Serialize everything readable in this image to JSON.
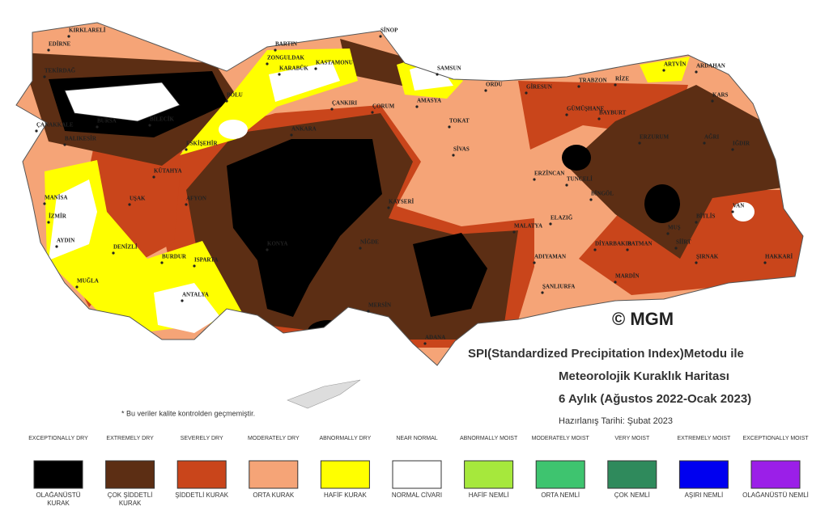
{
  "copyright": "© MGM",
  "title": {
    "line1": "SPI(Standardized Precipitation Index)Metodu ile",
    "line2": "Meteorolojik Kuraklık Haritası",
    "line3": "6 Aylık (Ağustos 2022-Ocak 2023)",
    "date": "Hazırlanış Tarihi: Şubat 2023"
  },
  "note": "* Bu veriler kalite kontrolden geçmemiştir.",
  "legend": [
    {
      "en": "EXCEPTIONALLY DRY",
      "tr": "OLAĞANÜSTÜ KURAK",
      "color": "#000000"
    },
    {
      "en": "EXTREMELY DRY",
      "tr": "ÇOK ŞİDDETLİ KURAK",
      "color": "#5c2e14"
    },
    {
      "en": "SEVERELY DRY",
      "tr": "ŞİDDETLİ KURAK",
      "color": "#c9451b"
    },
    {
      "en": "MODERATELY DRY",
      "tr": "ORTA KURAK",
      "color": "#f5a477"
    },
    {
      "en": "ABNORMALLY DRY",
      "tr": "HAFİF KURAK",
      "color": "#ffff00"
    },
    {
      "en": "NEAR NORMAL",
      "tr": "NORMAL CİVARI",
      "color": "#ffffff"
    },
    {
      "en": "ABNORMALLY MOIST",
      "tr": "HAFİF NEMLİ",
      "color": "#a6e83c"
    },
    {
      "en": "MODERATELY MOIST",
      "tr": "ORTA NEMLİ",
      "color": "#3ec46f"
    },
    {
      "en": "VERY MOIST",
      "tr": "ÇOK NEMLİ",
      "color": "#2f8a5c"
    },
    {
      "en": "EXTREMELY MOIST",
      "tr": "AŞIRI NEMLİ",
      "color": "#0000f0"
    },
    {
      "en": "EXCEPTIONALLY MOIST",
      "tr": "OLAĞANÜSTÜ NEMLİ",
      "color": "#9b1fe8"
    }
  ],
  "cities": [
    "KIRKLARELİ",
    "EDİRNE",
    "TEKİRDAĞ",
    "ÇANAKKALE",
    "BALIKESİR",
    "BURSA",
    "BİLECİK",
    "ESKİŞEHİR",
    "BOLU",
    "BARTIN",
    "ZONGULDAK",
    "KARABÜK",
    "KASTAMONU",
    "SİNOP",
    "SAMSUN",
    "ORDU",
    "GİRESUN",
    "TRABZON",
    "RİZE",
    "ARTVİN",
    "ARDAHAN",
    "KARS",
    "ÇANKIRI",
    "ÇORUM",
    "AMASYA",
    "TOKAT",
    "ANKARA",
    "SİVAS",
    "GÜMÜŞHANE",
    "BAYBURT",
    "ERZURUM",
    "AĞRI",
    "IĞDIR",
    "KÜTAHYA",
    "UŞAK",
    "AFYON",
    "KAYSERİ",
    "ERZİNCAN",
    "TUNCELİ",
    "BİNGÖL",
    "MUŞ",
    "VAN",
    "ELAZIĞ",
    "MALATYA",
    "MANİSA",
    "İZMİR",
    "AYDIN",
    "DENİZLİ",
    "BURDUR",
    "ISPARTA",
    "KONYA",
    "NİĞDE",
    "MUĞLA",
    "ANTALYA",
    "MERSİN",
    "ADANA",
    "ADIYAMAN",
    "ŞANLIURFA",
    "DİYARBAKIR",
    "BATMAN",
    "MARDİN",
    "SİİRT",
    "ŞIRNAK",
    "HAKKARİ",
    "BİTLİS"
  ]
}
